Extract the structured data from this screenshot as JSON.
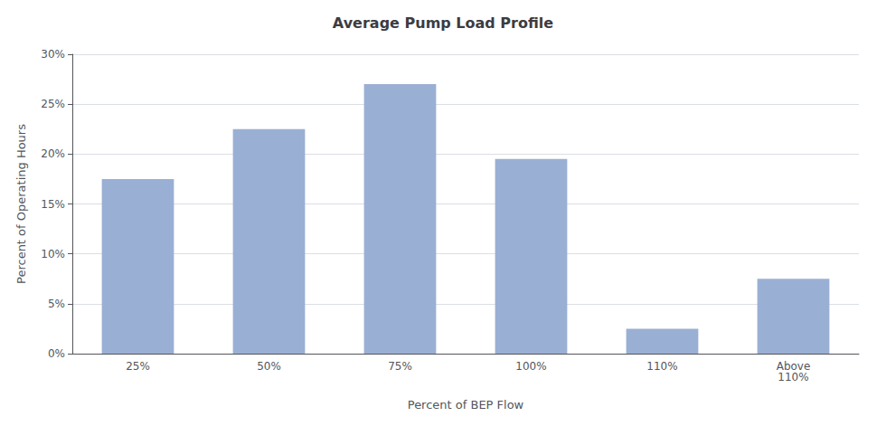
{
  "chart_data": {
    "type": "bar",
    "title": "Average Pump Load Profile",
    "xlabel": "Percent of BEP Flow",
    "ylabel": "Percent of Operating Hours",
    "categories": [
      "25%",
      "50%",
      "75%",
      "100%",
      "110%",
      "Above\n110%"
    ],
    "values": [
      17.5,
      22.5,
      27.0,
      19.5,
      2.5,
      7.5
    ],
    "color": "#9aafd4",
    "ylim": [
      0,
      30
    ],
    "yticks": [
      {
        "value": 0,
        "label": "0%"
      },
      {
        "value": 5,
        "label": "5%"
      },
      {
        "value": 10,
        "label": "10%"
      },
      {
        "value": 15,
        "label": "15%"
      },
      {
        "value": 20,
        "label": "20%"
      },
      {
        "value": 25,
        "label": "25%"
      },
      {
        "value": 30,
        "label": "30%"
      }
    ],
    "grid": true
  }
}
